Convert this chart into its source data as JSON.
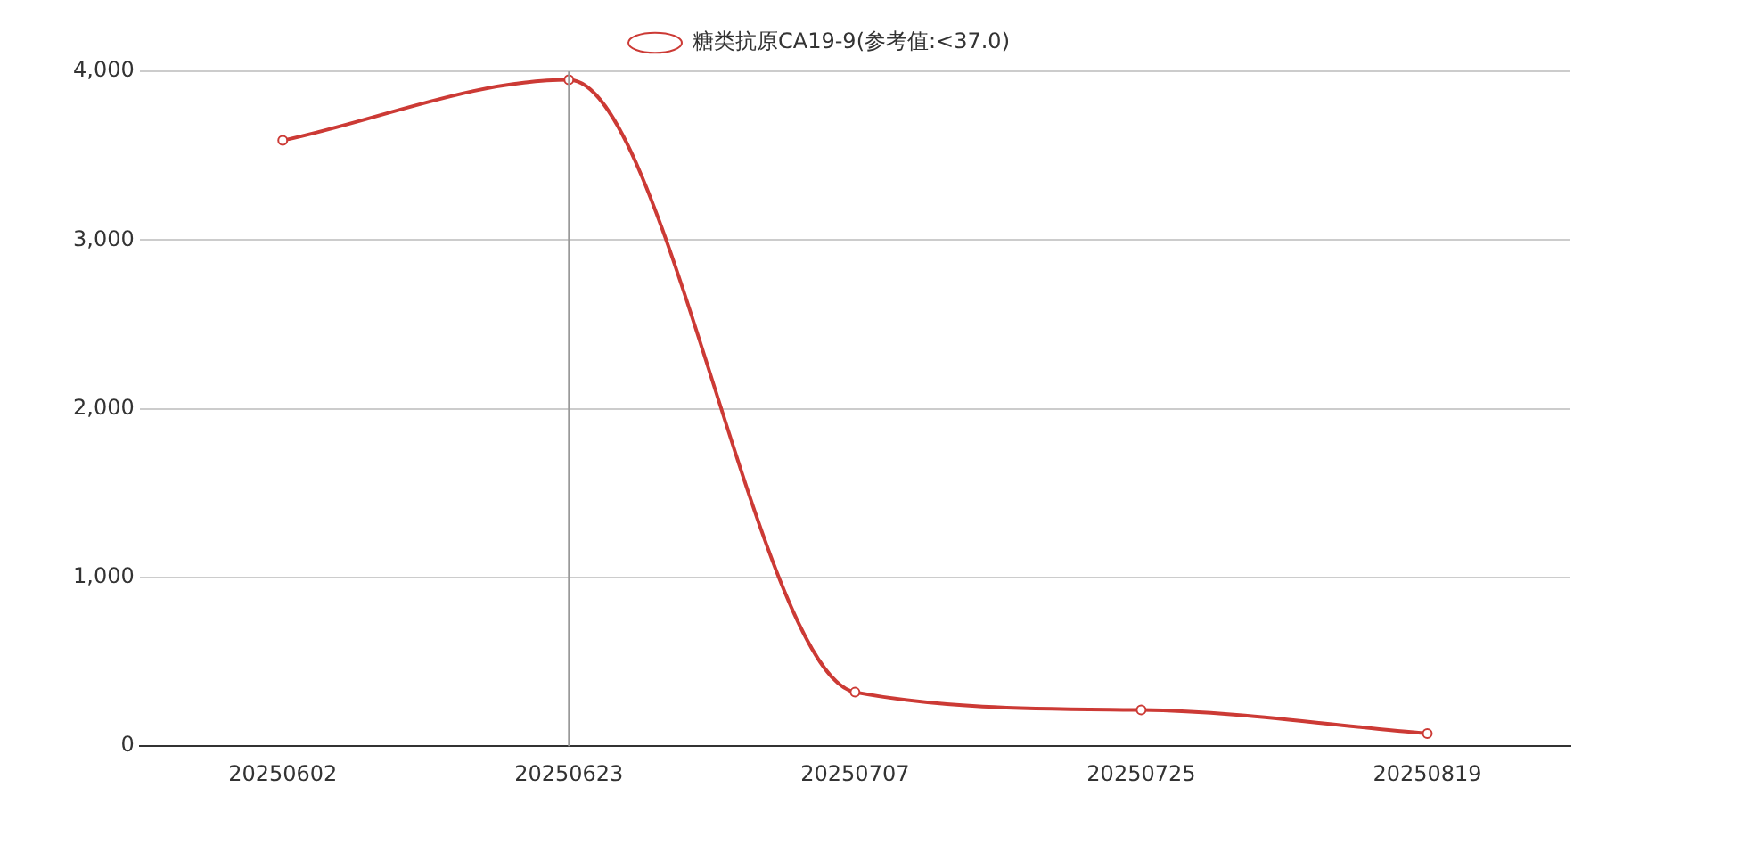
{
  "chart_data": {
    "type": "line",
    "categories": [
      "20250602",
      "20250623",
      "20250707",
      "20250725",
      "20250819"
    ],
    "series": [
      {
        "name": "糖类抗原CA19-9(参考值:<37.0)",
        "color": "#cc3a35",
        "values": [
          3590,
          3950,
          320,
          215,
          75
        ]
      }
    ],
    "ylim": [
      0,
      4000
    ],
    "yticks": [
      {
        "value": 0,
        "label": "0"
      },
      {
        "value": 1000,
        "label": "1,000"
      },
      {
        "value": 2000,
        "label": "2,000"
      },
      {
        "value": 3000,
        "label": "3,000"
      },
      {
        "value": 4000,
        "label": "4,000"
      }
    ],
    "grid": "y",
    "legend": "top",
    "marker": "circle",
    "line_style": "solid",
    "ref_lines": [
      {
        "axis": "x",
        "value": "20250623",
        "color": "#999999"
      }
    ]
  }
}
